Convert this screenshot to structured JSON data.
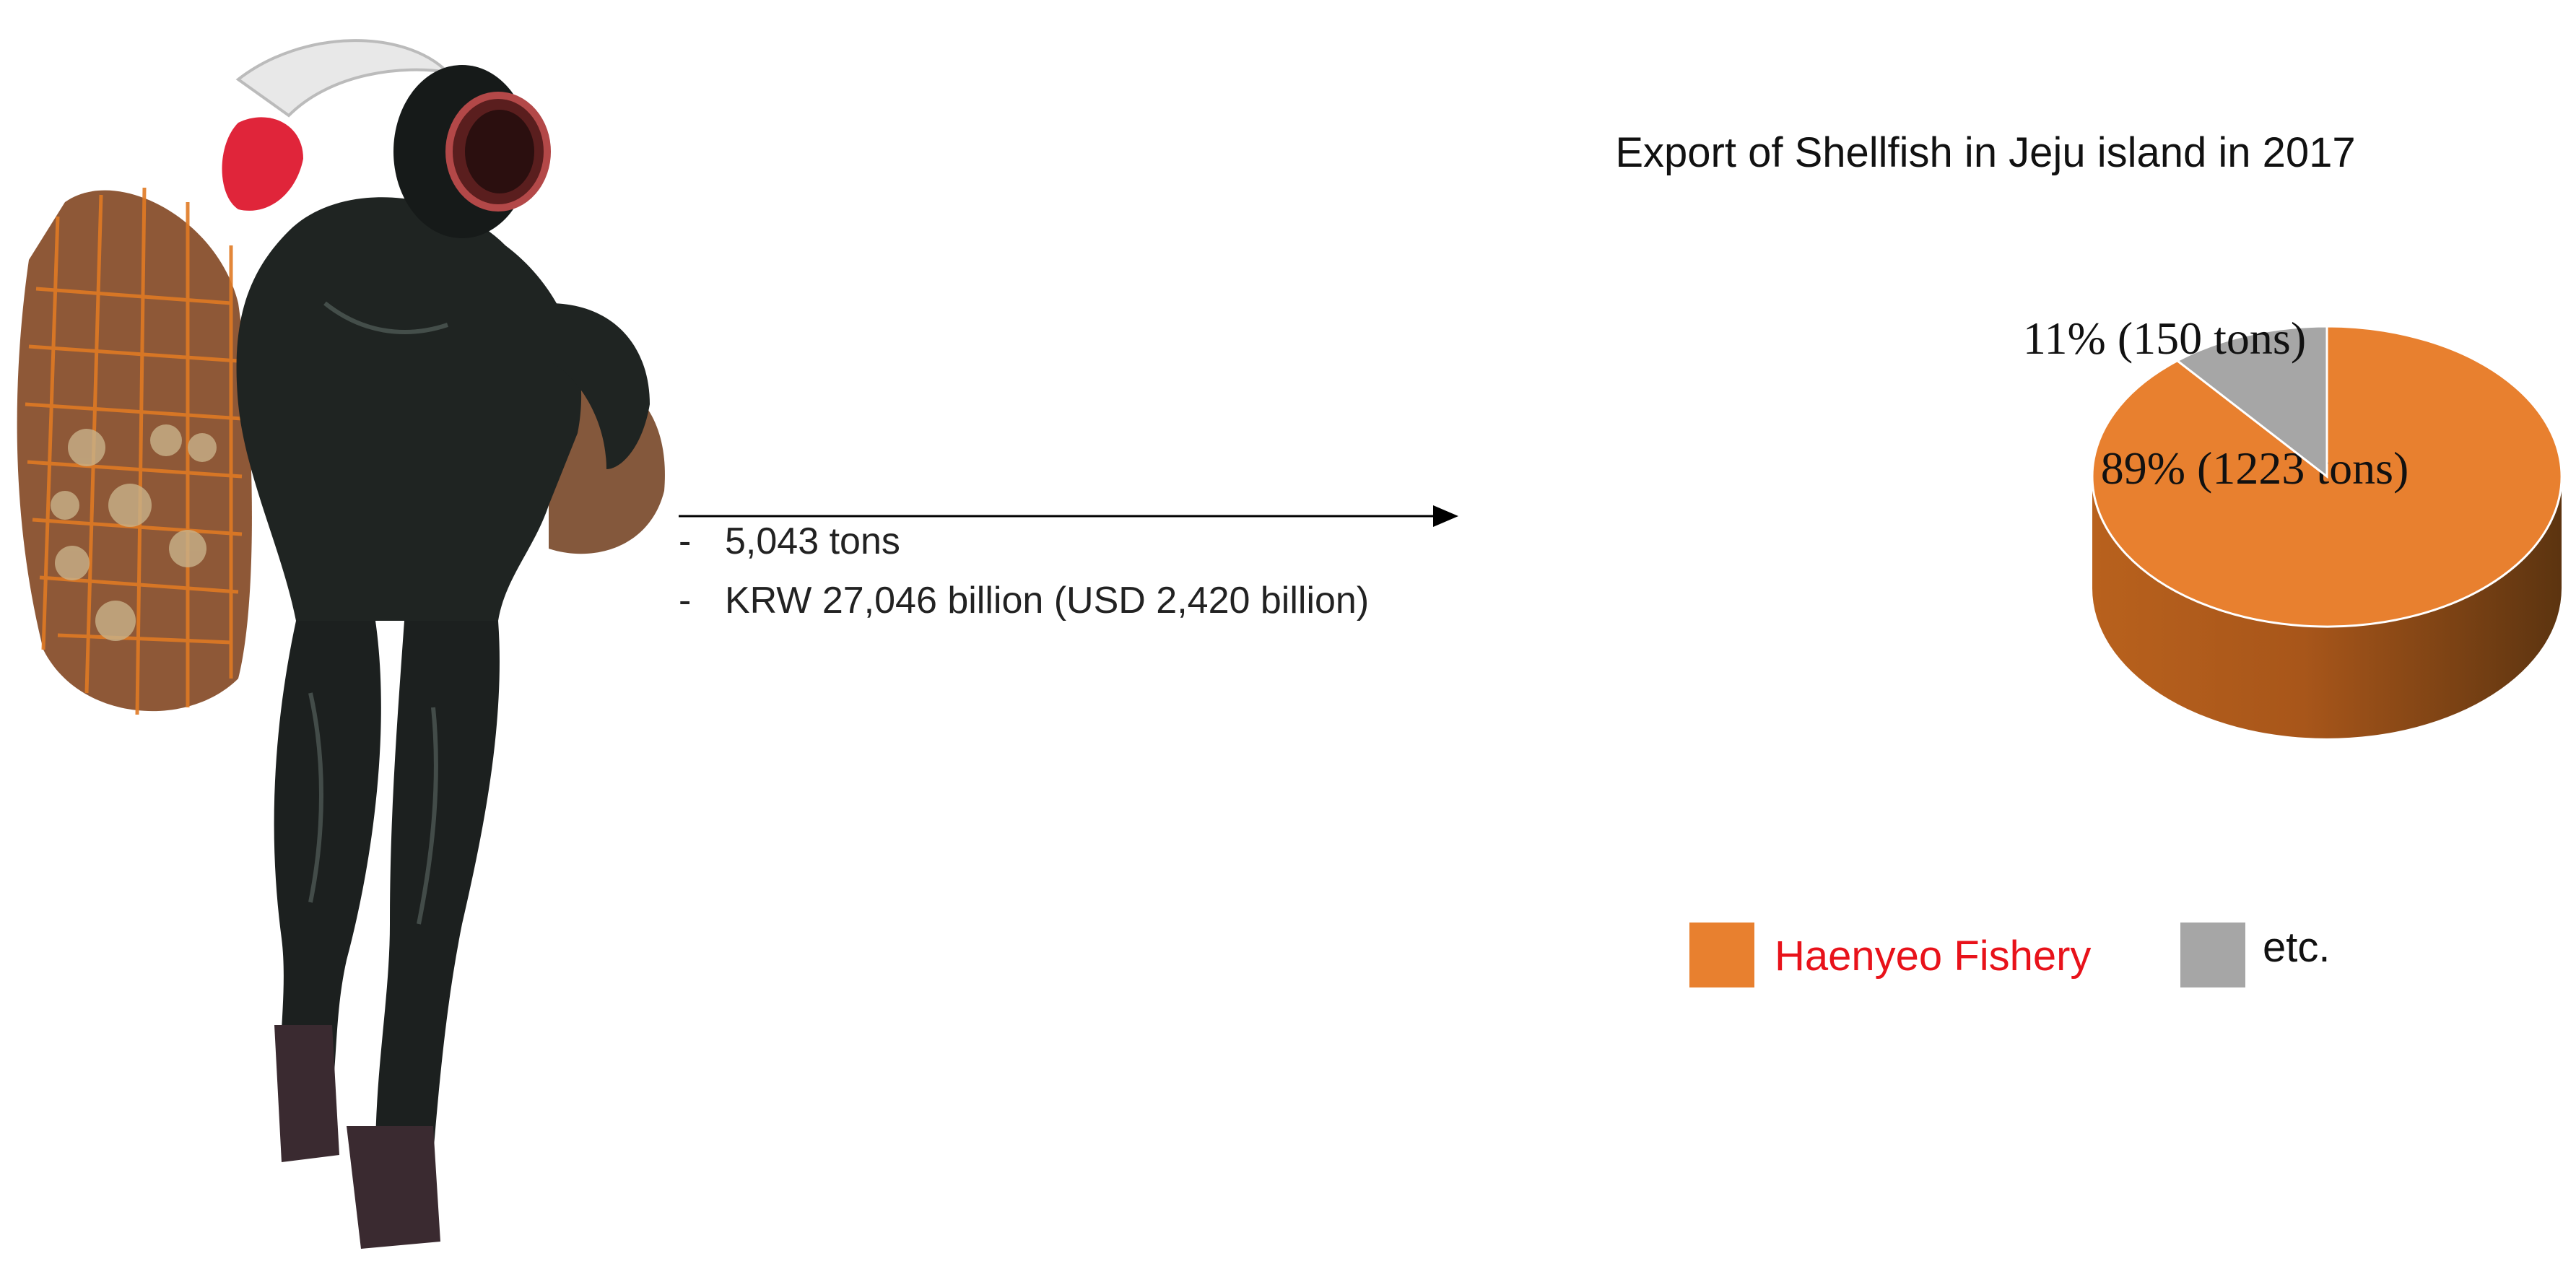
{
  "info": {
    "line1": "5,043 tons",
    "line2": "KRW 27,046 billion (USD 2,420 billion)",
    "dash": "-"
  },
  "colors": {
    "haenyeo": "#E8802F",
    "haenyeo_side_dark": "#6B3A10",
    "etc": "#A6A6A6",
    "haenyeo_legend_text": "#E8121A",
    "etc_legend_text": "#111111"
  },
  "chart_data": {
    "type": "pie",
    "title": "Export of Shellfish in Jeju island in 2017",
    "slices": [
      {
        "name": "Haenyeo Fishery",
        "percent": 89,
        "label": "89% (1223 tons)",
        "color": "#E8802F"
      },
      {
        "name": "etc.",
        "percent": 11,
        "label": "11% (150 tons)",
        "color": "#A6A6A6"
      }
    ],
    "style": "3d",
    "legend_placement": "bottom"
  },
  "legend": [
    {
      "label": "Haenyeo Fishery"
    },
    {
      "label": "etc."
    }
  ]
}
